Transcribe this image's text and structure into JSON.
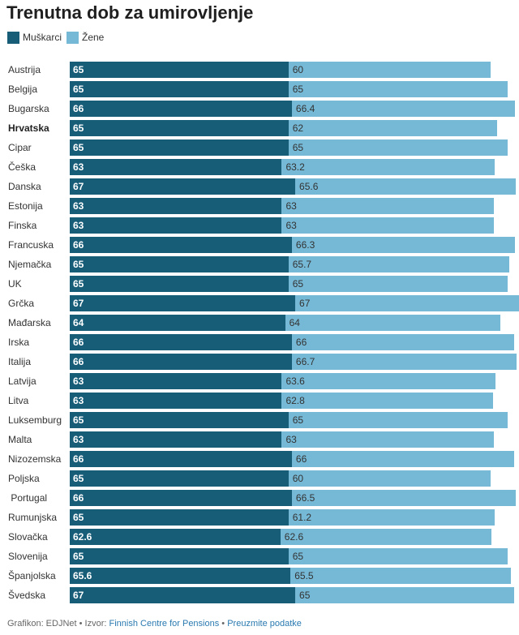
{
  "chart_data": {
    "type": "bar",
    "orientation": "horizontal",
    "title": "Trenutna dob za umirovljenje",
    "categories": [
      "Austrija",
      "Belgija",
      "Bugarska",
      "Hrvatska",
      "Cipar",
      "Češka",
      "Danska",
      "Estonija",
      "Finska",
      "Francuska",
      "Njemačka",
      "UK",
      "Grčka",
      "Mađarska",
      "Irska",
      "Italija",
      "Latvija",
      "Litva",
      "Luksemburg",
      "Malta",
      "Nizozemska",
      "Poljska",
      " Portugal",
      "Rumunjska",
      "Slovačka",
      "Slovenija",
      "Španjolska",
      "Švedska"
    ],
    "bold_categories": [
      "Hrvatska"
    ],
    "series": [
      {
        "name": "Muškarci",
        "color": "#175d78",
        "values": [
          65,
          65,
          66,
          65,
          65,
          63,
          67,
          63,
          63,
          66,
          65,
          65,
          67,
          64,
          66,
          66,
          63,
          63,
          65,
          63,
          66,
          65,
          66,
          65,
          62.6,
          65,
          65.6,
          67
        ]
      },
      {
        "name": "Žene",
        "color": "#76b9d6",
        "values": [
          60,
          65,
          66.4,
          62,
          65,
          63.2,
          65.6,
          63,
          63,
          66.3,
          65.7,
          65,
          67,
          64,
          66,
          66.7,
          63.6,
          62.8,
          65,
          63,
          66,
          60,
          66.5,
          61.2,
          62.6,
          65,
          65.5,
          65
        ]
      }
    ],
    "stacked": true,
    "legend_position": "top-left",
    "grid": false
  },
  "footer": {
    "prefix": "Grafikon: EDJNet • Izvor: ",
    "source_link": "Finnish Centre for Pensions",
    "separator": " • ",
    "download_link": "Preuzmite podatke"
  }
}
